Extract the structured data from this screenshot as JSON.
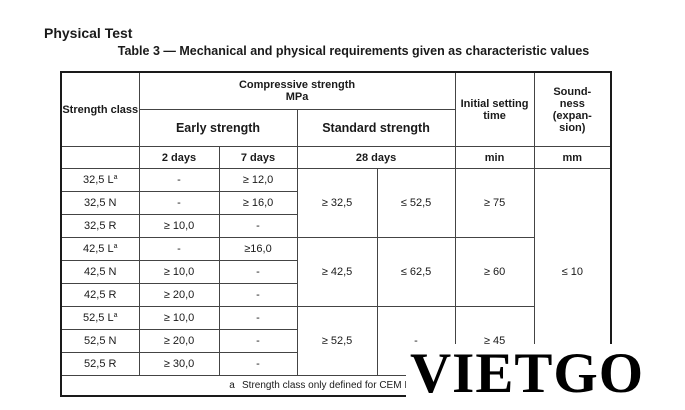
{
  "heading": "Physical Test",
  "caption": "Table 3 — Mechanical and physical requirements given as characteristic values",
  "headers": {
    "strength_class": "Strength class",
    "compressive_strength": "Compressive strength",
    "compressive_unit": "MPa",
    "early_strength": "Early strength",
    "standard_strength": "Standard strength",
    "initial_setting_time": "Initial setting time",
    "soundness": "Sound-ness (expan-sion)",
    "two_days": "2 days",
    "seven_days": "7 days",
    "twenty_eight_days": "28 days",
    "min": "min",
    "mm": "mm"
  },
  "rows": [
    {
      "cls": "32,5 L",
      "sup": "a",
      "d2": "-",
      "d7": "≥ 12,0"
    },
    {
      "cls": "32,5 N",
      "sup": "",
      "d2": "-",
      "d7": "≥ 16,0"
    },
    {
      "cls": "32,5 R",
      "sup": "",
      "d2": "≥ 10,0",
      "d7": "-"
    },
    {
      "cls": "42,5 L",
      "sup": "a",
      "d2": "-",
      "d7": "≥16,0"
    },
    {
      "cls": "42,5 N",
      "sup": "",
      "d2": "≥ 10,0",
      "d7": "-"
    },
    {
      "cls": "42,5 R",
      "sup": "",
      "d2": "≥ 20,0",
      "d7": "-"
    },
    {
      "cls": "52,5 L",
      "sup": "a",
      "d2": "≥ 10,0",
      "d7": "-"
    },
    {
      "cls": "52,5 N",
      "sup": "",
      "d2": "≥ 20,0",
      "d7": "-"
    },
    {
      "cls": "52,5 R",
      "sup": "",
      "d2": "≥ 30,0",
      "d7": "-"
    }
  ],
  "groups": [
    {
      "min28": "≥ 32,5",
      "max28": "≤ 52,5",
      "setting": "≥ 75"
    },
    {
      "min28": "≥ 42,5",
      "max28": "≤ 62,5",
      "setting": "≥ 60"
    },
    {
      "min28": "≥ 52,5",
      "max28": "-",
      "setting": "≥ 45"
    }
  ],
  "soundness_value": "≤ 10",
  "footnote": {
    "mark": "a",
    "text": "Strength class only defined for CEM III cements."
  },
  "watermark": "VIETGO"
}
